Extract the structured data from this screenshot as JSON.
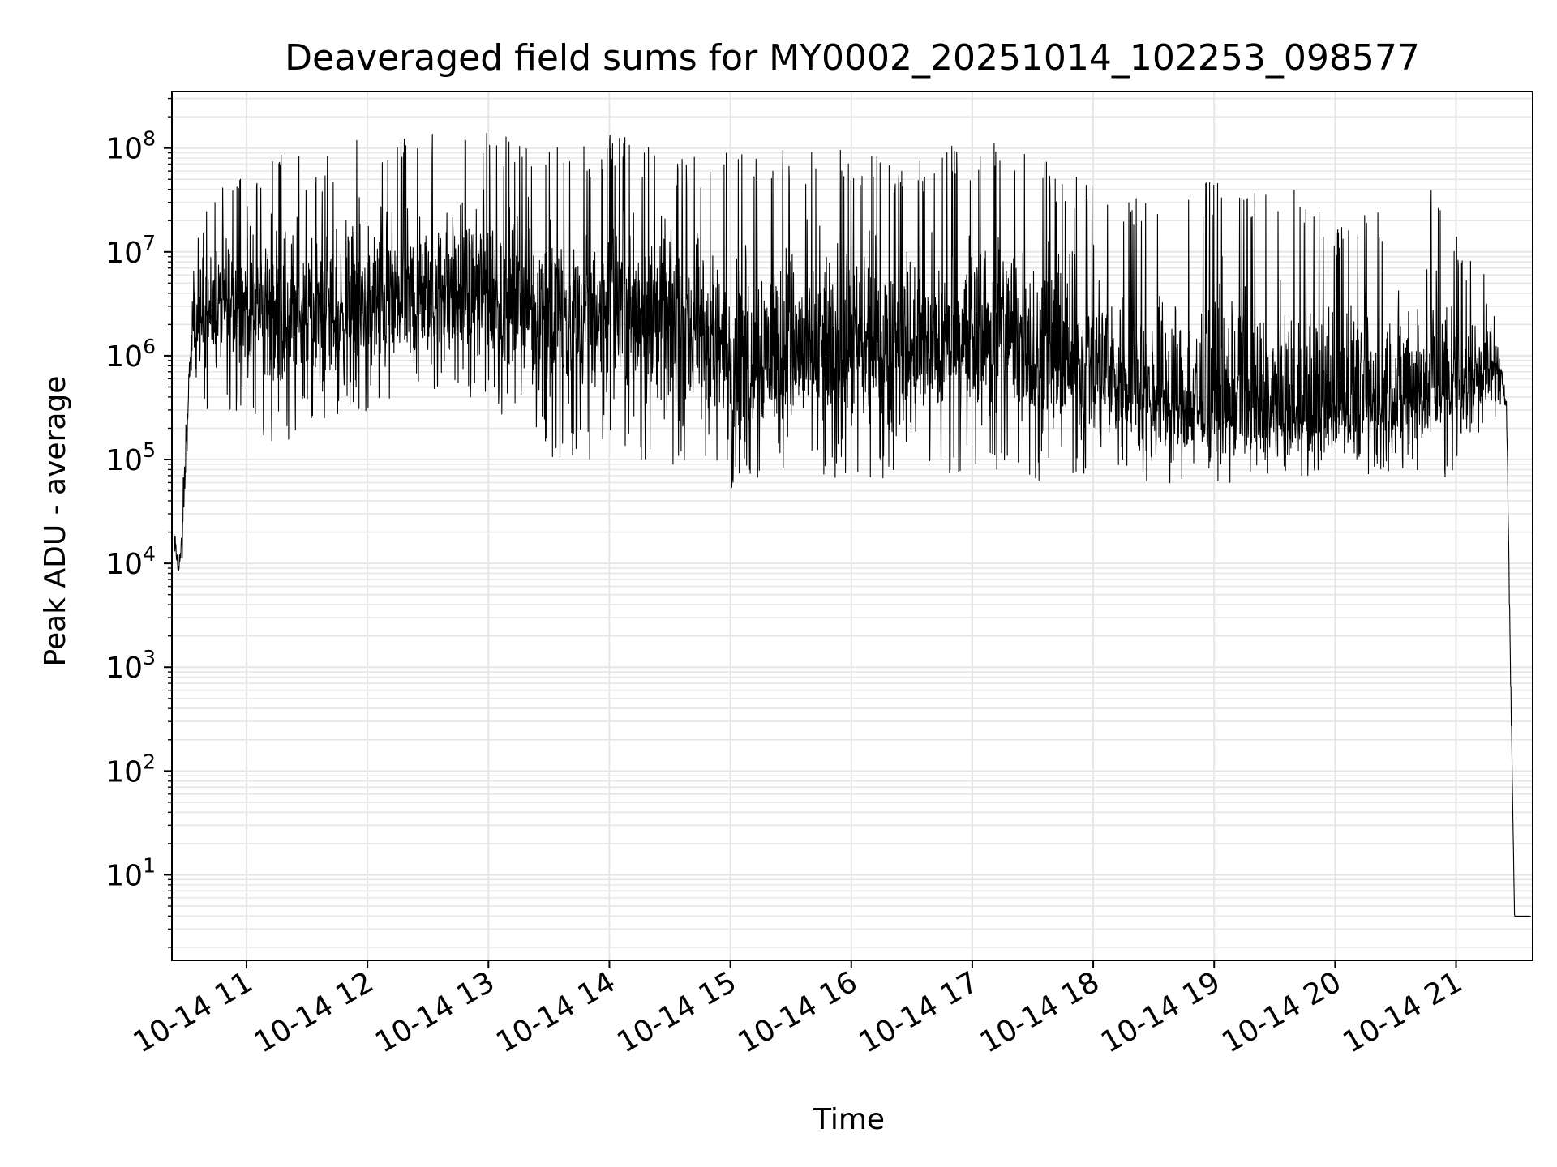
{
  "chart_data": {
    "type": "line",
    "title": "Deaveraged field sums for MY0002_20251014_102253_098577",
    "xlabel": "Time",
    "ylabel": "Peak ADU - average",
    "y_scale": "log",
    "ylim": [
      1.5,
      350000000
    ],
    "xlim": [
      "2025-10-14 10:23",
      "2025-10-14 21:38"
    ],
    "grid": true,
    "line_color": "#000000",
    "grid_color": "#e6e6e6",
    "x_ticks": [
      {
        "value": "2025-10-14 11:00",
        "label": "10-14 11"
      },
      {
        "value": "2025-10-14 12:00",
        "label": "10-14 12"
      },
      {
        "value": "2025-10-14 13:00",
        "label": "10-14 13"
      },
      {
        "value": "2025-10-14 14:00",
        "label": "10-14 14"
      },
      {
        "value": "2025-10-14 15:00",
        "label": "10-14 15"
      },
      {
        "value": "2025-10-14 16:00",
        "label": "10-14 16"
      },
      {
        "value": "2025-10-14 17:00",
        "label": "10-14 17"
      },
      {
        "value": "2025-10-14 18:00",
        "label": "10-14 18"
      },
      {
        "value": "2025-10-14 19:00",
        "label": "10-14 19"
      },
      {
        "value": "2025-10-14 20:00",
        "label": "10-14 20"
      },
      {
        "value": "2025-10-14 21:00",
        "label": "10-14 21"
      }
    ],
    "y_ticks": [
      {
        "value": 10,
        "base": "10",
        "exp": "1"
      },
      {
        "value": 100,
        "base": "10",
        "exp": "2"
      },
      {
        "value": 1000,
        "base": "10",
        "exp": "3"
      },
      {
        "value": 10000,
        "base": "10",
        "exp": "4"
      },
      {
        "value": 100000,
        "base": "10",
        "exp": "5"
      },
      {
        "value": 1000000,
        "base": "10",
        "exp": "6"
      },
      {
        "value": 10000000,
        "base": "10",
        "exp": "7"
      },
      {
        "value": 100000000,
        "base": "10",
        "exp": "8"
      }
    ],
    "series": [
      {
        "style": "noisy-envelope",
        "x": [
          "2025-10-14 10:24",
          "2025-10-14 10:26",
          "2025-10-14 10:28",
          "2025-10-14 10:30",
          "2025-10-14 10:32",
          "2025-10-14 10:34",
          "2025-10-14 10:36",
          "2025-10-14 10:40",
          "2025-10-14 10:50",
          "2025-10-14 11:00",
          "2025-10-14 11:15",
          "2025-10-14 11:30",
          "2025-10-14 11:45",
          "2025-10-14 12:00",
          "2025-10-14 12:15",
          "2025-10-14 12:30",
          "2025-10-14 12:45",
          "2025-10-14 13:00",
          "2025-10-14 13:15",
          "2025-10-14 13:30",
          "2025-10-14 13:45",
          "2025-10-14 14:00",
          "2025-10-14 14:15",
          "2025-10-14 14:30",
          "2025-10-14 14:45",
          "2025-10-14 15:00",
          "2025-10-14 15:15",
          "2025-10-14 15:30",
          "2025-10-14 15:45",
          "2025-10-14 16:00",
          "2025-10-14 16:15",
          "2025-10-14 16:30",
          "2025-10-14 16:45",
          "2025-10-14 17:00",
          "2025-10-14 17:15",
          "2025-10-14 17:30",
          "2025-10-14 17:45",
          "2025-10-14 18:00",
          "2025-10-14 18:15",
          "2025-10-14 18:30",
          "2025-10-14 18:45",
          "2025-10-14 19:00",
          "2025-10-14 19:15",
          "2025-10-14 19:30",
          "2025-10-14 19:45",
          "2025-10-14 20:00",
          "2025-10-14 20:15",
          "2025-10-14 20:30",
          "2025-10-14 20:45",
          "2025-10-14 21:00",
          "2025-10-14 21:10",
          "2025-10-14 21:20",
          "2025-10-14 21:25",
          "2025-10-14 21:27",
          "2025-10-14 21:29",
          "2025-10-14 21:30",
          "2025-10-14 21:37"
        ],
        "median": [
          18000,
          9000,
          14000,
          120000,
          900000,
          1500000,
          2000000,
          2500000,
          3000000,
          3000000,
          2500000,
          2500000,
          2500000,
          3000000,
          3000000,
          3000000,
          4000000,
          4000000,
          3000000,
          3000000,
          2000000,
          3000000,
          3000000,
          2000000,
          1500000,
          1000000,
          1000000,
          1000000,
          900000,
          1000000,
          1000000,
          1000000,
          1000000,
          1500000,
          2000000,
          1000000,
          800000,
          700000,
          500000,
          400000,
          300000,
          300000,
          250000,
          250000,
          250000,
          300000,
          350000,
          400000,
          450000,
          500000,
          700000,
          800000,
          400000,
          1000,
          4,
          4,
          4
        ],
        "min": [
          10000,
          7000,
          8000,
          60000,
          500000,
          400000,
          600000,
          300000,
          300000,
          200000,
          130000,
          150000,
          200000,
          300000,
          300000,
          500000,
          400000,
          300000,
          200000,
          100000,
          100000,
          100000,
          70000,
          80000,
          60000,
          50000,
          60000,
          60000,
          70000,
          60000,
          60000,
          60000,
          70000,
          70000,
          60000,
          60000,
          60000,
          70000,
          60000,
          55000,
          60000,
          60000,
          60000,
          70000,
          70000,
          60000,
          55000,
          60000,
          65000,
          60000,
          70000,
          150000,
          300000,
          500,
          4,
          4,
          4
        ],
        "max": [
          25000,
          18000,
          30000,
          800000,
          3000000,
          13000000,
          30000000,
          30000000,
          60000000,
          50000000,
          140000000,
          70000000,
          100000000,
          140000000,
          150000000,
          150000000,
          150000000,
          150000000,
          120000000,
          110000000,
          100000000,
          150000000,
          120000000,
          90000000,
          90000000,
          100000000,
          90000000,
          100000000,
          90000000,
          100000000,
          90000000,
          70000000,
          110000000,
          100000000,
          130000000,
          90000000,
          60000000,
          50000000,
          30000000,
          40000000,
          45000000,
          50000000,
          45000000,
          40000000,
          40000000,
          20000000,
          25000000,
          30000000,
          50000000,
          15000000,
          10000000,
          3000000,
          500000,
          2000,
          4,
          4,
          4
        ]
      }
    ]
  }
}
